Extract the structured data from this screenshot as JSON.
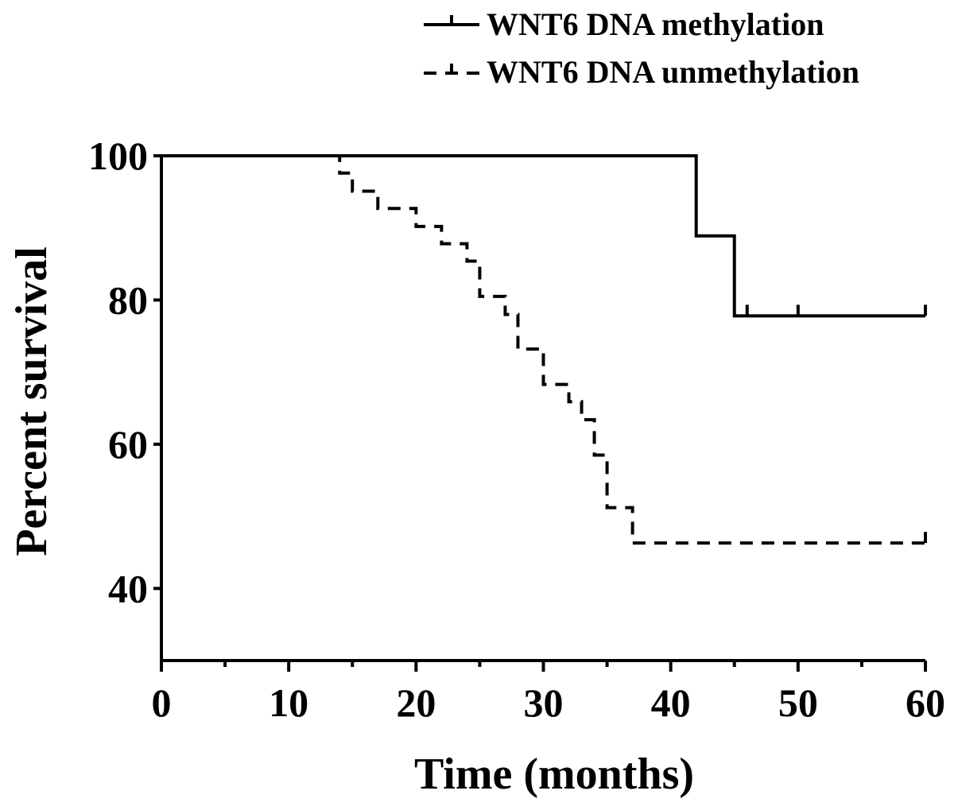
{
  "chart_data": {
    "type": "line",
    "subtype": "kaplan-meier",
    "title": "",
    "xlabel": "Time (months)",
    "ylabel": "Percent survival",
    "xlim": [
      0,
      60
    ],
    "ylim": [
      30,
      100
    ],
    "xticks": [
      0,
      10,
      20,
      30,
      40,
      50,
      60
    ],
    "yticks": [
      40,
      60,
      80,
      100
    ],
    "grid": false,
    "legend_position": "top-right",
    "series": [
      {
        "name": "WNT6 DNA  methylation",
        "style": "solid",
        "color": "#000000",
        "steps": [
          [
            0,
            100
          ],
          [
            42,
            88.9
          ],
          [
            45,
            77.8
          ],
          [
            60,
            77.8
          ]
        ],
        "censored": [
          [
            46,
            77.8
          ],
          [
            50,
            77.8
          ],
          [
            60,
            77.8
          ]
        ]
      },
      {
        "name": "WNT6 DNA  unmethylation",
        "style": "dashed",
        "color": "#000000",
        "steps": [
          [
            0,
            100
          ],
          [
            14,
            97.6
          ],
          [
            15,
            95.1
          ],
          [
            17,
            92.7
          ],
          [
            20,
            90.2
          ],
          [
            22,
            87.8
          ],
          [
            24,
            85.4
          ],
          [
            25,
            80.5
          ],
          [
            27,
            78.0
          ],
          [
            28,
            73.2
          ],
          [
            30,
            68.3
          ],
          [
            32,
            65.9
          ],
          [
            33,
            63.4
          ],
          [
            34,
            58.5
          ],
          [
            35,
            51.2
          ],
          [
            37,
            46.3
          ],
          [
            60,
            46.3
          ]
        ],
        "censored": [
          [
            60,
            46.3
          ]
        ]
      }
    ]
  }
}
